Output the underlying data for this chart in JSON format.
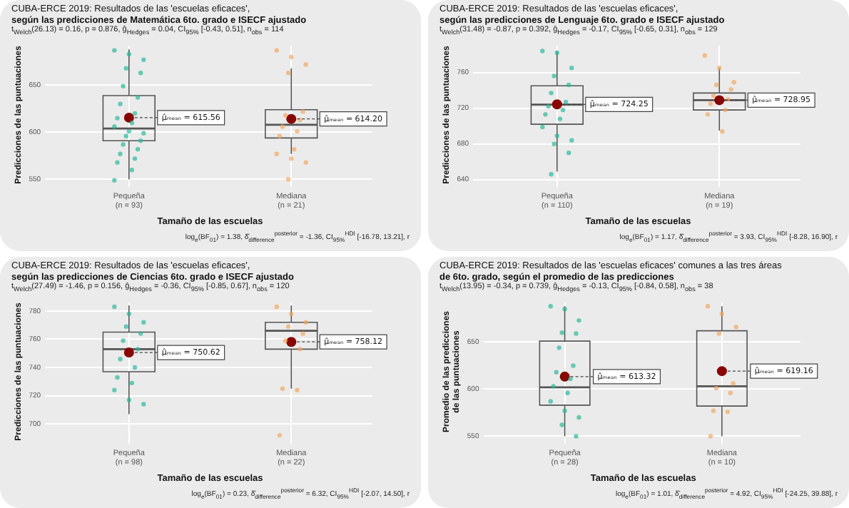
{
  "chart_data": [
    {
      "type": "box",
      "title": "CUBA-ERCE 2019: Resultados de las 'escuelas eficaces',\nsegún las predicciones de Matemática 6to. grado e ISECF ajustado",
      "subtitle": "t$_{Welch}$(26.13) = 0.16, p = 0.876, ĝ$_{Hedges}$ = 0.04, CI$_{95%}$ [-0.43, 0.51], n$_{obs}$ = 114",
      "xlabel": "Tamaño de las escuelas",
      "ylabel": "Predicciones de las puntuaciones",
      "categories": [
        "Pequeña\n(n = 93)",
        "Mediana\n(n = 21)"
      ],
      "ylim": [
        545,
        692
      ],
      "yticks": [
        550,
        600,
        650
      ],
      "grid": true,
      "legend": false,
      "marker": "circle",
      "boxes": [
        {
          "low": 550,
          "q1": 591,
          "median": 604,
          "q3": 639,
          "high": 688,
          "mean": 615.56
        },
        {
          "low": 577,
          "q1": 594,
          "median": 608,
          "q3": 624,
          "high": 668,
          "mean": 614.2
        }
      ],
      "series": [
        {
          "type": "scatter",
          "color": "#1fb896",
          "x": [
            "Pequeña\n(n = 93)",
            "Pequeña\n(n = 93)",
            "Pequeña\n(n = 93)",
            "Pequeña\n(n = 93)",
            "Pequeña\n(n = 93)",
            "Pequeña\n(n = 93)",
            "Pequeña\n(n = 93)",
            "Pequeña\n(n = 93)",
            "Pequeña\n(n = 93)",
            "Pequeña\n(n = 93)",
            "Pequeña\n(n = 93)",
            "Pequeña\n(n = 93)",
            "Pequeña\n(n = 93)",
            "Pequeña\n(n = 93)",
            "Pequeña\n(n = 93)",
            "Pequeña\n(n = 93)",
            "Pequeña\n(n = 93)",
            "Pequeña\n(n = 93)",
            "Pequeña\n(n = 93)",
            "Pequeña\n(n = 93)",
            "Pequeña\n(n = 93)",
            "Pequeña\n(n = 93)",
            "Pequeña\n(n = 93)"
          ],
          "values": [
            687,
            683,
            677,
            668,
            663,
            649,
            637,
            630,
            620,
            615,
            610,
            606,
            601,
            599,
            596,
            591,
            587,
            582,
            577,
            572,
            568,
            560,
            549
          ]
        },
        {
          "type": "scatter",
          "color": "#f5a55a",
          "x": [
            "Mediana\n(n = 21)",
            "Mediana\n(n = 21)",
            "Mediana\n(n = 21)",
            "Mediana\n(n = 21)",
            "Mediana\n(n = 21)",
            "Mediana\n(n = 21)",
            "Mediana\n(n = 21)",
            "Mediana\n(n = 21)",
            "Mediana\n(n = 21)",
            "Mediana\n(n = 21)",
            "Mediana\n(n = 21)",
            "Mediana\n(n = 21)",
            "Mediana\n(n = 21)",
            "Mediana\n(n = 21)",
            "Mediana\n(n = 21)"
          ],
          "values": [
            687,
            680,
            672,
            663,
            622,
            618,
            613,
            606,
            601,
            596,
            582,
            577,
            572,
            568,
            550
          ]
        }
      ],
      "annotations": [
        "μ̂ₘₑₐₙ = 615.56",
        "μ̂ₘₑₐₙ = 614.20",
        "log$_{e}$(BF$_{01}$) = 1.38, δ̂$_{difference}$$^{posterior}$ = -1.36, CI$_{95%}$$^{HDI}$ [-16.78, 13.21], r"
      ]
    },
    {
      "type": "box",
      "title": "CUBA-ERCE 2019: Resultados de las 'escuelas eficaces',\nsegún las predicciones de Lenguaje 6to. grado e ISECF ajustado",
      "subtitle": "t$_{Welch}$(31.48) = -0.87, p = 0.392, ĝ$_{Hedges}$ = -0.17, CI$_{95%}$ [-0.65, 0.31], n$_{obs}$ = 129",
      "xlabel": "Tamaño de las escuelas",
      "ylabel": "Predicciones de las puntuaciones",
      "categories": [
        "Pequeña\n(n = 110)",
        "Mediana\n(n = 19)"
      ],
      "ylim": [
        635,
        790
      ],
      "yticks": [
        640,
        680,
        720,
        760
      ],
      "grid": true,
      "legend": false,
      "marker": "circle",
      "boxes": [
        {
          "low": 649,
          "q1": 702,
          "median": 724,
          "q3": 745,
          "high": 784,
          "mean": 724.25
        },
        {
          "low": 695,
          "q1": 718,
          "median": 729,
          "q3": 737,
          "high": 765,
          "mean": 728.95
        }
      ],
      "series": [
        {
          "type": "scatter",
          "color": "#1fb896",
          "x": [
            "Pequeña\n(n = 110)",
            "Pequeña\n(n = 110)",
            "Pequeña\n(n = 110)",
            "Pequeña\n(n = 110)",
            "Pequeña\n(n = 110)",
            "Pequeña\n(n = 110)",
            "Pequeña\n(n = 110)",
            "Pequeña\n(n = 110)",
            "Pequeña\n(n = 110)",
            "Pequeña\n(n = 110)",
            "Pequeña\n(n = 110)",
            "Pequeña\n(n = 110)",
            "Pequeña\n(n = 110)",
            "Pequeña\n(n = 110)",
            "Pequeña\n(n = 110)",
            "Pequeña\n(n = 110)",
            "Pequeña\n(n = 110)"
          ],
          "values": [
            784,
            782,
            765,
            756,
            746,
            737,
            727,
            722,
            718,
            713,
            708,
            699,
            689,
            684,
            680,
            670,
            646
          ]
        },
        {
          "type": "scatter",
          "color": "#f5a55a",
          "x": [
            "Mediana\n(n = 19)",
            "Mediana\n(n = 19)",
            "Mediana\n(n = 19)",
            "Mediana\n(n = 19)",
            "Mediana\n(n = 19)",
            "Mediana\n(n = 19)",
            "Mediana\n(n = 19)",
            "Mediana\n(n = 19)",
            "Mediana\n(n = 19)",
            "Mediana\n(n = 19)",
            "Mediana\n(n = 19)"
          ],
          "values": [
            779,
            765,
            749,
            746,
            741,
            734,
            730,
            725,
            718,
            713,
            694
          ]
        }
      ],
      "annotations": [
        "μ̂ₘₑₐₙ = 724.25",
        "μ̂ₘₑₐₙ = 728.95",
        "log$_{e}$(BF$_{01}$) = 1.17, δ̂$_{difference}$$^{posterior}$ = 3.93, CI$_{95%}$$^{HDI}$ [-8.28, 16.90], r"
      ]
    },
    {
      "type": "box",
      "title": "CUBA-ERCE 2019: Resultados de las 'escuelas eficaces',\nsegún las predicciones de Ciencias 6to. grado e ISECF ajustado",
      "subtitle": "t$_{Welch}$(27.49) = -1.46, p = 0.156, ĝ$_{Hedges}$ = -0.36, CI$_{95%}$ [-0.85, 0.67], n$_{obs}$ = 120",
      "xlabel": "Tamaño de las escuelas",
      "ylabel": "Predicciones de las puntuaciones",
      "categories": [
        "Pequeña\n(n = 98)",
        "Mediana\n(n = 22)"
      ],
      "ylim": [
        688,
        786
      ],
      "yticks": [
        700,
        720,
        740,
        760,
        780
      ],
      "grid": true,
      "legend": false,
      "marker": "circle",
      "boxes": [
        {
          "low": 707,
          "q1": 737,
          "median": 753,
          "q3": 765,
          "high": 784,
          "mean": 750.62
        },
        {
          "low": 725,
          "q1": 753,
          "median": 766,
          "q3": 772,
          "high": 784,
          "mean": 758.12
        }
      ],
      "series": [
        {
          "type": "scatter",
          "color": "#1fb896",
          "x": [
            "Pequeña\n(n = 98)",
            "Pequeña\n(n = 98)",
            "Pequeña\n(n = 98)",
            "Pequeña\n(n = 98)",
            "Pequeña\n(n = 98)",
            "Pequeña\n(n = 98)",
            "Pequeña\n(n = 98)",
            "Pequeña\n(n = 98)",
            "Pequeña\n(n = 98)",
            "Pequeña\n(n = 98)",
            "Pequeña\n(n = 98)",
            "Pequeña\n(n = 98)",
            "Pequeña\n(n = 98)",
            "Pequeña\n(n = 98)"
          ],
          "values": [
            783,
            778,
            772,
            769,
            764,
            759,
            753,
            746,
            740,
            733,
            729,
            724,
            717,
            714
          ]
        },
        {
          "type": "scatter",
          "color": "#f5a55a",
          "x": [
            "Mediana\n(n = 22)",
            "Mediana\n(n = 22)",
            "Mediana\n(n = 22)",
            "Mediana\n(n = 22)",
            "Mediana\n(n = 22)",
            "Mediana\n(n = 22)",
            "Mediana\n(n = 22)",
            "Mediana\n(n = 22)",
            "Mediana\n(n = 22)",
            "Mediana\n(n = 22)"
          ],
          "values": [
            783,
            778,
            772,
            769,
            764,
            759,
            753,
            725,
            724,
            692
          ]
        }
      ],
      "annotations": [
        "μ̂ₘₑₐₙ = 750.62",
        "μ̂ₘₑₐₙ = 758.12",
        "log$_{e}$(BF$_{01}$) = 0.23, δ̂$_{difference}$$^{posterior}$ = 6.32, CI$_{95%}$$^{HDI}$ [-2.07, 14.50], r"
      ]
    },
    {
      "type": "box",
      "title": "CUBA-ERCE 2019: Resultados de las 'escuelas eficaces' comunes a las tres áreas\nde 6to. grado, según el promedio de las predicciones",
      "subtitle": "t$_{Welch}$(13.95) = -0.34, p = 0.739, ĝ$_{Hedges}$ = -0.13, CI$_{95%}$ [-0.84, 0.58], n$_{obs}$ = 38",
      "xlabel": "Tamaño de las escuelas",
      "ylabel": "Promedio de las predicciones\nde las puntuaciones",
      "categories": [
        "Pequeña\n(n = 28)",
        "Mediana\n(n = 10)"
      ],
      "ylim": [
        545,
        692
      ],
      "yticks": [
        550,
        600,
        650
      ],
      "grid": true,
      "legend": false,
      "marker": "circle",
      "boxes": [
        {
          "low": 550,
          "q1": 583,
          "median": 602,
          "q3": 651,
          "high": 688,
          "mean": 613.32
        },
        {
          "low": 550,
          "q1": 582,
          "median": 603,
          "q3": 662,
          "high": 688,
          "mean": 619.16
        }
      ],
      "series": [
        {
          "type": "scatter",
          "color": "#1fb896",
          "x": [
            "Pequeña\n(n = 28)",
            "Pequeña\n(n = 28)",
            "Pequeña\n(n = 28)",
            "Pequeña\n(n = 28)",
            "Pequeña\n(n = 28)",
            "Pequeña\n(n = 28)",
            "Pequeña\n(n = 28)",
            "Pequeña\n(n = 28)",
            "Pequeña\n(n = 28)",
            "Pequeña\n(n = 28)",
            "Pequeña\n(n = 28)",
            "Pequeña\n(n = 28)",
            "Pequeña\n(n = 28)",
            "Pequeña\n(n = 28)",
            "Pequeña\n(n = 28)",
            "Pequeña\n(n = 28)"
          ],
          "values": [
            688,
            685,
            673,
            660,
            659,
            644,
            625,
            618,
            611,
            603,
            596,
            587,
            577,
            570,
            562,
            550
          ]
        },
        {
          "type": "scatter",
          "color": "#f5a55a",
          "x": [
            "Mediana\n(n = 10)",
            "Mediana\n(n = 10)",
            "Mediana\n(n = 10)",
            "Mediana\n(n = 10)",
            "Mediana\n(n = 10)",
            "Mediana\n(n = 10)",
            "Mediana\n(n = 10)",
            "Mediana\n(n = 10)",
            "Mediana\n(n = 10)",
            "Mediana\n(n = 10)"
          ],
          "values": [
            688,
            680,
            666,
            659,
            606,
            601,
            596,
            577,
            576,
            550
          ]
        }
      ],
      "annotations": [
        "μ̂ₘₑₐₙ = 613.32",
        "μ̂ₘₑₐₙ = 619.16",
        "log$_{e}$(BF$_{01}$) = 1.01, δ̂$_{difference}$$^{posterior}$ = 4.92, CI$_{95%}$$^{HDI}$ [-24.25, 39.88], r"
      ]
    }
  ]
}
